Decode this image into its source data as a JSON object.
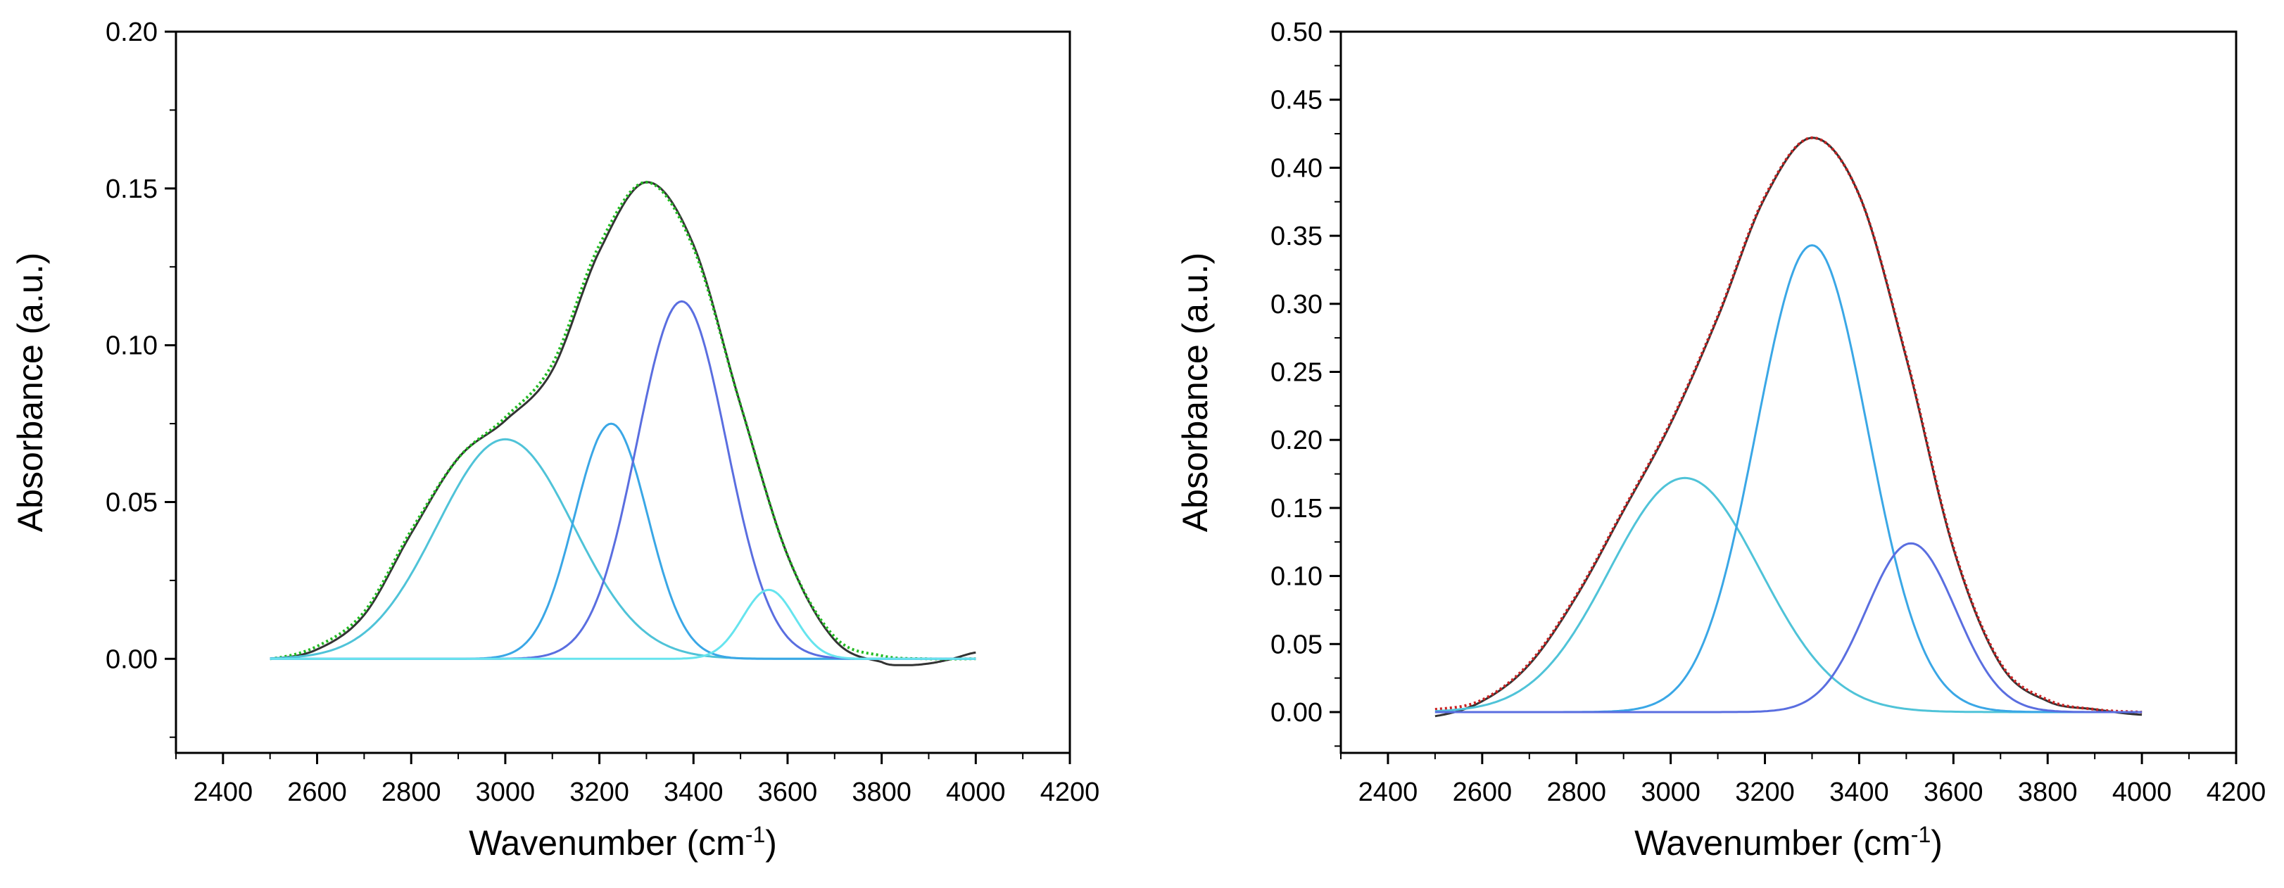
{
  "chart_data": [
    {
      "type": "line",
      "title": "",
      "xlabel": "Wavenumber (cm",
      "xlabel_sup": "-1",
      "xlabel_close": ")",
      "ylabel": "Absorbance (a.u.)",
      "xlim": [
        2300,
        4200
      ],
      "ylim": [
        -0.03,
        0.2
      ],
      "xticks": [
        "2400",
        "2600",
        "2800",
        "3000",
        "3200",
        "3400",
        "3600",
        "3800",
        "4000",
        "4200"
      ],
      "yticks": [
        "0.00",
        "0.05",
        "0.10",
        "0.15",
        "0.20"
      ],
      "ytick_values": [
        0.0,
        0.05,
        0.1,
        0.15,
        0.2
      ],
      "grid": false,
      "series": [
        {
          "role": "experimental",
          "color": "#333333",
          "x": [
            2500,
            2600,
            2700,
            2800,
            2900,
            3000,
            3100,
            3200,
            3300,
            3400,
            3500,
            3600,
            3700,
            3800,
            3850,
            3900,
            3950,
            4000
          ],
          "y": [
            0.0,
            0.003,
            0.014,
            0.04,
            0.064,
            0.076,
            0.092,
            0.13,
            0.152,
            0.132,
            0.081,
            0.033,
            0.006,
            -0.001,
            -0.002,
            -0.0015,
            0.0,
            0.002
          ]
        },
        {
          "role": "fit",
          "color": "#22bb22",
          "x": [
            2500,
            2600,
            2700,
            2800,
            2900,
            3000,
            3100,
            3200,
            3300,
            3400,
            3500,
            3600,
            3700,
            3800,
            3900,
            4000
          ],
          "y": [
            0.0,
            0.004,
            0.015,
            0.041,
            0.064,
            0.077,
            0.094,
            0.132,
            0.152,
            0.131,
            0.081,
            0.033,
            0.007,
            0.001,
            0.0,
            0.0
          ]
        },
        {
          "role": "component",
          "color": "#4fc3d8",
          "center": 3000,
          "height": 0.07,
          "sigma": 145
        },
        {
          "role": "component",
          "color": "#3aa7e6",
          "center": 3225,
          "height": 0.075,
          "sigma": 78
        },
        {
          "role": "component",
          "color": "#5a6ee0",
          "center": 3375,
          "height": 0.114,
          "sigma": 95
        },
        {
          "role": "component",
          "color": "#66e4ee",
          "center": 3560,
          "height": 0.022,
          "sigma": 55
        }
      ]
    },
    {
      "type": "line",
      "title": "",
      "xlabel": "Wavenumber (cm",
      "xlabel_sup": "-1",
      "xlabel_close": ")",
      "ylabel": "Absorbance (a.u.)",
      "xlim": [
        2300,
        4200
      ],
      "ylim": [
        -0.03,
        0.5
      ],
      "xticks": [
        "2400",
        "2600",
        "2800",
        "3000",
        "3200",
        "3400",
        "3600",
        "3800",
        "4000",
        "4200"
      ],
      "yticks": [
        "0.00",
        "0.05",
        "0.10",
        "0.15",
        "0.20",
        "0.25",
        "0.30",
        "0.35",
        "0.40",
        "0.45",
        "0.50"
      ],
      "ytick_values": [
        0.0,
        0.05,
        0.1,
        0.15,
        0.2,
        0.25,
        0.3,
        0.35,
        0.4,
        0.45,
        0.5
      ],
      "grid": false,
      "series": [
        {
          "role": "experimental",
          "color": "#333333",
          "x": [
            2500,
            2600,
            2700,
            2800,
            2900,
            3000,
            3100,
            3200,
            3300,
            3400,
            3500,
            3600,
            3700,
            3800,
            3900,
            4000
          ],
          "y": [
            -0.003,
            0.008,
            0.035,
            0.085,
            0.148,
            0.212,
            0.29,
            0.378,
            0.422,
            0.38,
            0.26,
            0.12,
            0.035,
            0.008,
            0.002,
            -0.002
          ]
        },
        {
          "role": "fit",
          "color": "#cc2222",
          "x": [
            2500,
            2600,
            2700,
            2800,
            2900,
            3000,
            3100,
            3200,
            3300,
            3400,
            3500,
            3600,
            3700,
            3800,
            3900,
            4000
          ],
          "y": [
            0.002,
            0.009,
            0.036,
            0.086,
            0.149,
            0.213,
            0.291,
            0.379,
            0.422,
            0.38,
            0.261,
            0.121,
            0.036,
            0.009,
            0.002,
            0.0
          ]
        },
        {
          "role": "component",
          "color": "#4fc3d8",
          "center": 3030,
          "height": 0.172,
          "sigma": 160
        },
        {
          "role": "component",
          "color": "#3aa7e6",
          "center": 3300,
          "height": 0.343,
          "sigma": 118
        },
        {
          "role": "component",
          "color": "#5a6ee0",
          "center": 3510,
          "height": 0.124,
          "sigma": 95
        }
      ]
    }
  ]
}
